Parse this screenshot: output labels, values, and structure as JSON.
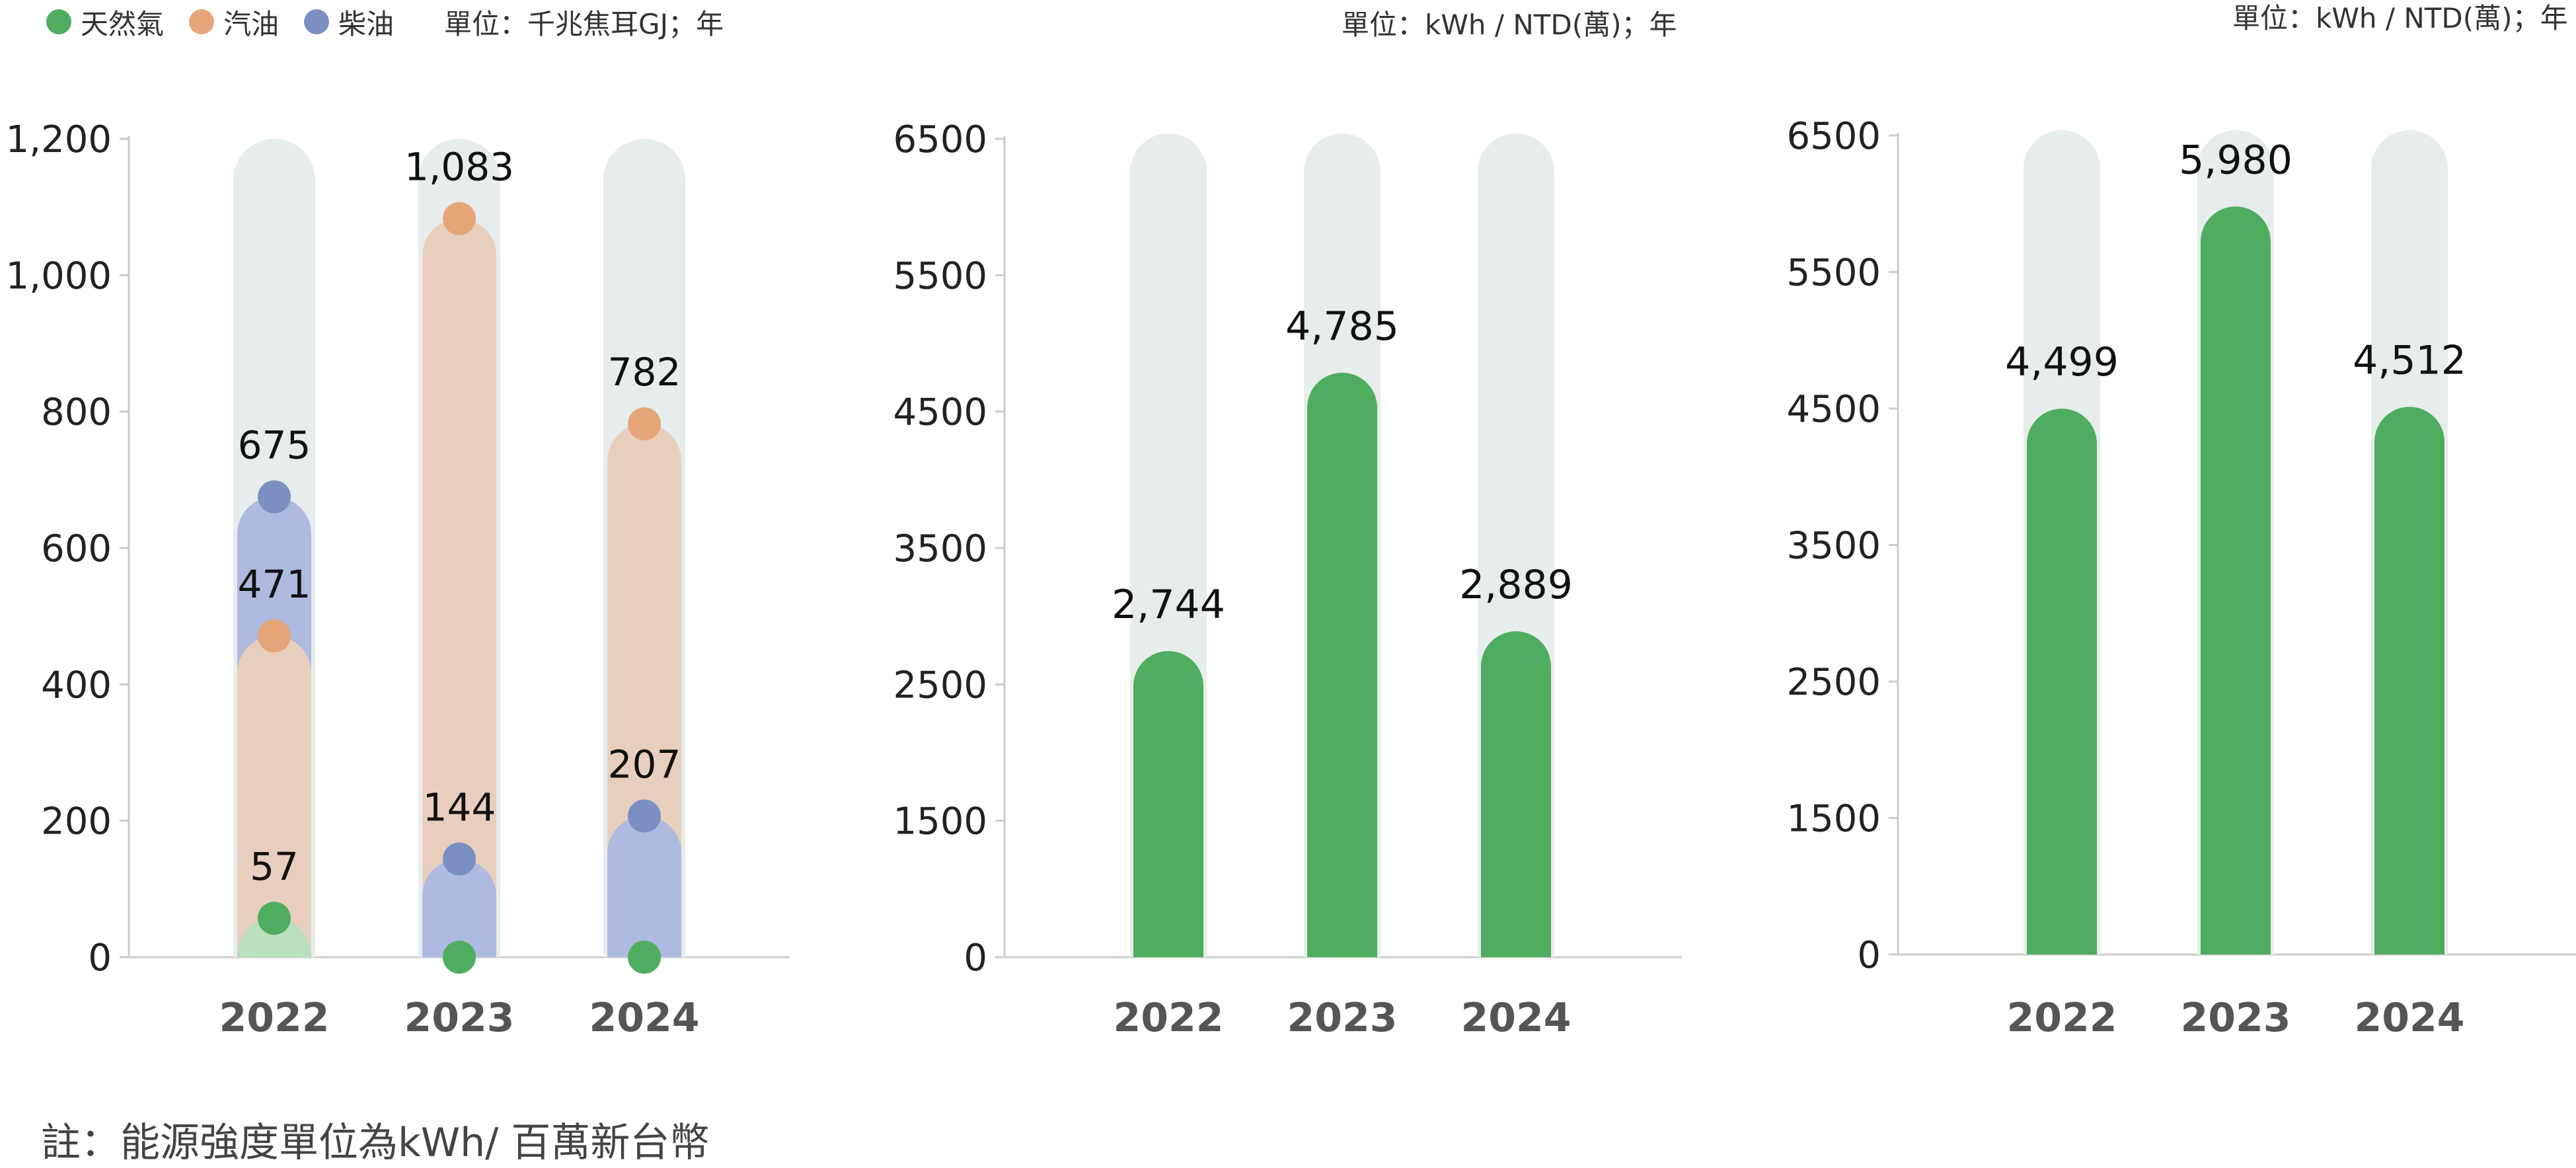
{
  "legend": {
    "items": [
      {
        "label": "天然氣",
        "color": "#4fad5f",
        "icon": "circle-icon"
      },
      {
        "label": "汽油",
        "color": "#e6a679",
        "icon": "circle-icon"
      },
      {
        "label": "柴油",
        "color": "#7b8fc2",
        "icon": "circle-icon"
      }
    ]
  },
  "units": {
    "chart1": "單位：千兆焦耳GJ；年",
    "chart2": "單位：kWh / NTD(萬)；年",
    "chart3": "單位：kWh / NTD(萬)；年"
  },
  "note": "註：能源強度單位為kWh/ 百萬新台幣",
  "colors": {
    "track": "#e7edec",
    "natural_gas_fill": "#b9dfbe",
    "gasoline_fill": "#e8cfbd",
    "diesel_fill": "#aebadf",
    "green_bar": "#4fad5f",
    "axis": "#cccccc"
  },
  "chart_data": [
    {
      "type": "bar",
      "categories": [
        "2022",
        "2023",
        "2024"
      ],
      "ylim": [
        0,
        1200
      ],
      "yticks": [
        "0",
        "200",
        "400",
        "600",
        "800",
        "1,000",
        "1,200"
      ],
      "series": [
        {
          "name": "天然氣",
          "values": [
            57,
            0,
            0
          ],
          "labels": [
            "57",
            "",
            ""
          ],
          "color": "#4fad5f"
        },
        {
          "name": "汽油",
          "values": [
            471,
            1083,
            782
          ],
          "labels": [
            "471",
            "1,083",
            "782"
          ],
          "color": "#e6a679"
        },
        {
          "name": "柴油",
          "values": [
            675,
            144,
            207
          ],
          "labels": [
            "675",
            "144",
            "207"
          ],
          "color": "#7b8fc2"
        }
      ]
    },
    {
      "type": "bar",
      "categories": [
        "2022",
        "2023",
        "2024"
      ],
      "ylim": [
        0,
        6500
      ],
      "yticks": [
        "0",
        "1500",
        "2500",
        "3500",
        "4500",
        "5500",
        "6500"
      ],
      "values": [
        2744,
        4785,
        2889
      ],
      "labels": [
        "2,744",
        "4,785",
        "2,889"
      ]
    },
    {
      "type": "bar",
      "categories": [
        "2022",
        "2023",
        "2024"
      ],
      "ylim": [
        0,
        6500
      ],
      "yticks": [
        "0",
        "1500",
        "2500",
        "3500",
        "4500",
        "5500",
        "6500"
      ],
      "values": [
        4499,
        5980,
        4512
      ],
      "labels": [
        "4,499",
        "5,980",
        "4,512"
      ]
    }
  ]
}
